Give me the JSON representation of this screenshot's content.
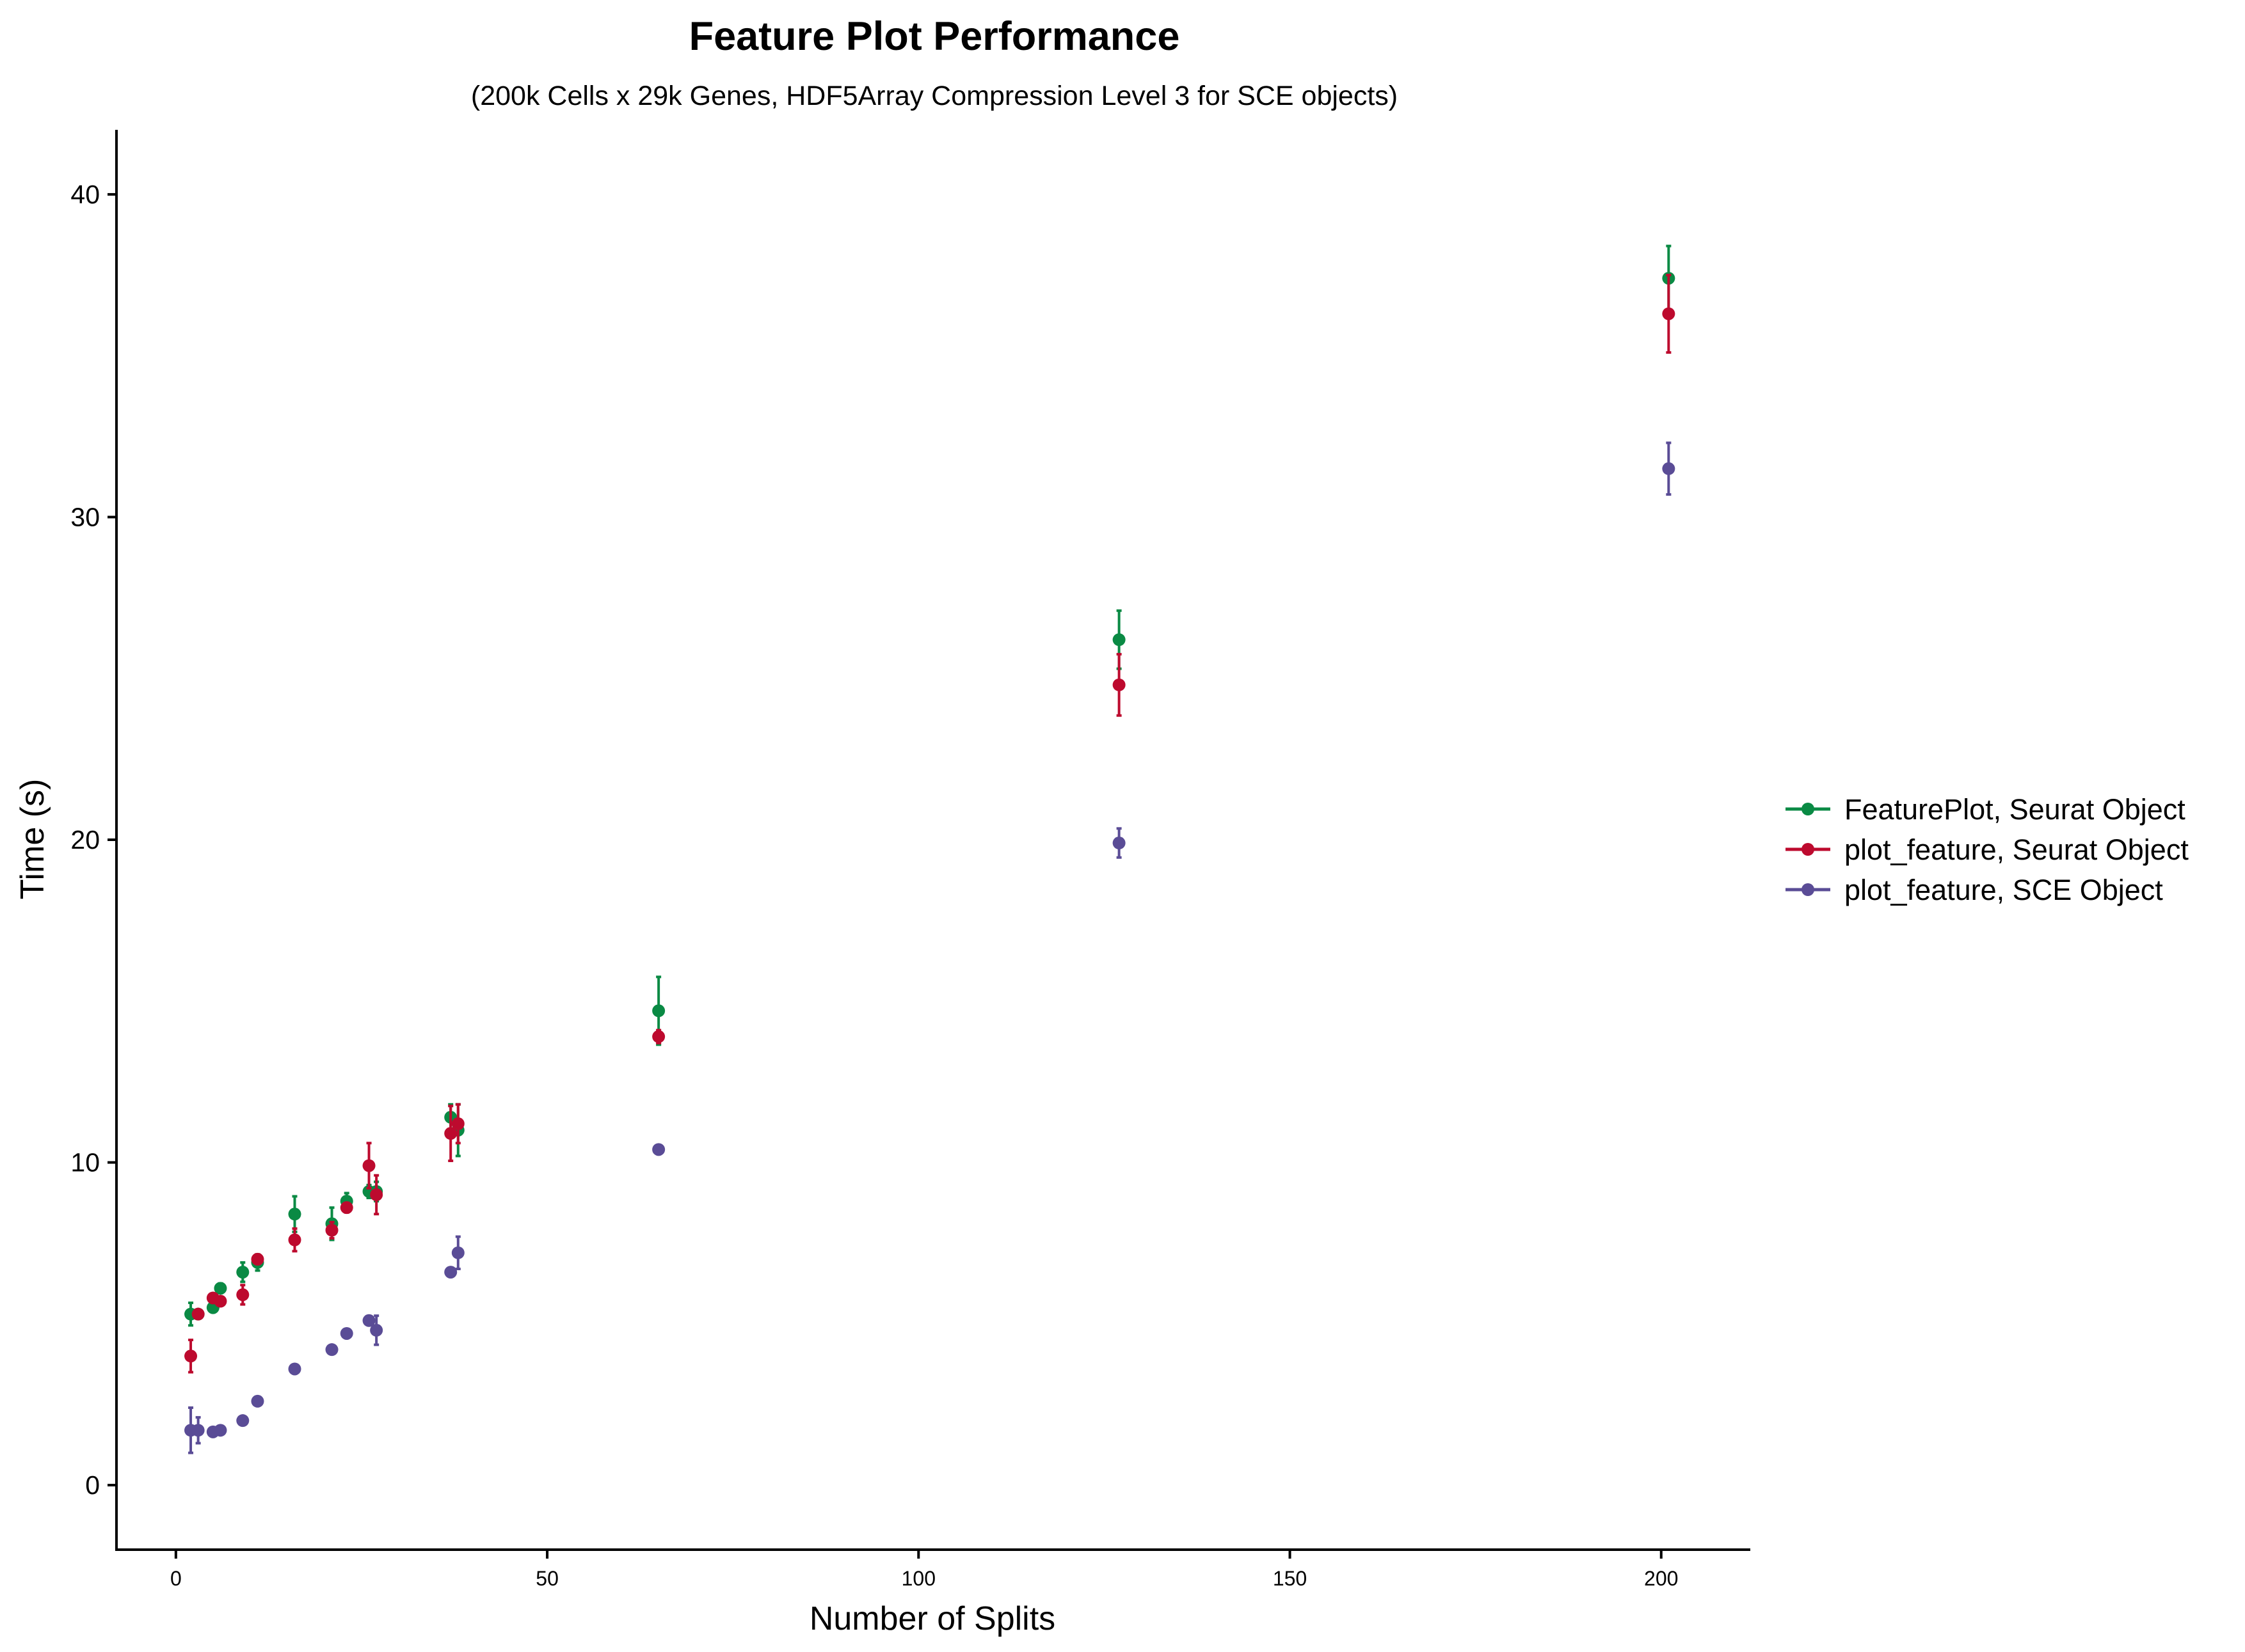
{
  "chart_data": {
    "type": "scatter",
    "title": "Feature Plot Performance",
    "subtitle": "(200k Cells x 29k Genes, HDF5Array Compression Level 3 for SCE objects)",
    "xlabel": "Number of Splits",
    "ylabel": "Time (s)",
    "xlim": [
      -8,
      212
    ],
    "ylim": [
      -2,
      42
    ],
    "x_ticks": [
      0,
      50,
      100,
      150,
      200
    ],
    "y_ticks": [
      0,
      10,
      20,
      30,
      40
    ],
    "grid": false,
    "error_bars": true,
    "legend_position": "right",
    "series": [
      {
        "name": "FeaturePlot, Seurat Object",
        "color": "#0a8a44",
        "x": [
          2,
          3,
          5,
          6,
          9,
          11,
          16,
          21,
          23,
          26,
          27,
          37,
          38,
          65,
          127,
          201
        ],
        "y": [
          5.3,
          5.3,
          5.5,
          6.1,
          6.6,
          6.9,
          8.4,
          8.1,
          8.8,
          9.1,
          9.1,
          11.4,
          11.0,
          14.7,
          26.2,
          37.4
        ],
        "err": [
          0.35,
          0.1,
          0.1,
          0.15,
          0.3,
          0.25,
          0.55,
          0.5,
          0.25,
          0.2,
          0.3,
          0.4,
          0.8,
          1.05,
          0.9,
          1.0
        ]
      },
      {
        "name": "plot_feature, Seurat Object",
        "color": "#bd0a2e",
        "x": [
          2,
          3,
          5,
          6,
          9,
          11,
          16,
          21,
          23,
          26,
          27,
          37,
          38,
          65,
          127,
          201
        ],
        "y": [
          4.0,
          5.3,
          5.8,
          5.7,
          5.9,
          7.0,
          7.6,
          7.9,
          8.6,
          9.9,
          9.0,
          10.9,
          11.2,
          13.9,
          24.8,
          36.3
        ],
        "err": [
          0.5,
          0.1,
          0.1,
          0.1,
          0.3,
          0.15,
          0.35,
          0.25,
          0.15,
          0.7,
          0.6,
          0.85,
          0.6,
          0.2,
          0.95,
          1.2
        ]
      },
      {
        "name": "plot_feature, SCE Object",
        "color": "#5a4c96",
        "x": [
          2,
          3,
          5,
          6,
          9,
          11,
          16,
          21,
          23,
          26,
          27,
          37,
          38,
          65,
          127,
          201
        ],
        "y": [
          1.7,
          1.7,
          1.65,
          1.7,
          2.0,
          2.6,
          3.6,
          4.2,
          4.7,
          5.1,
          4.8,
          6.6,
          7.2,
          10.4,
          19.9,
          31.5
        ],
        "err": [
          0.7,
          0.4,
          0.05,
          0.05,
          0.05,
          0.05,
          0.05,
          0.05,
          0.05,
          0.05,
          0.45,
          0.05,
          0.5,
          0.05,
          0.45,
          0.8
        ]
      }
    ]
  }
}
